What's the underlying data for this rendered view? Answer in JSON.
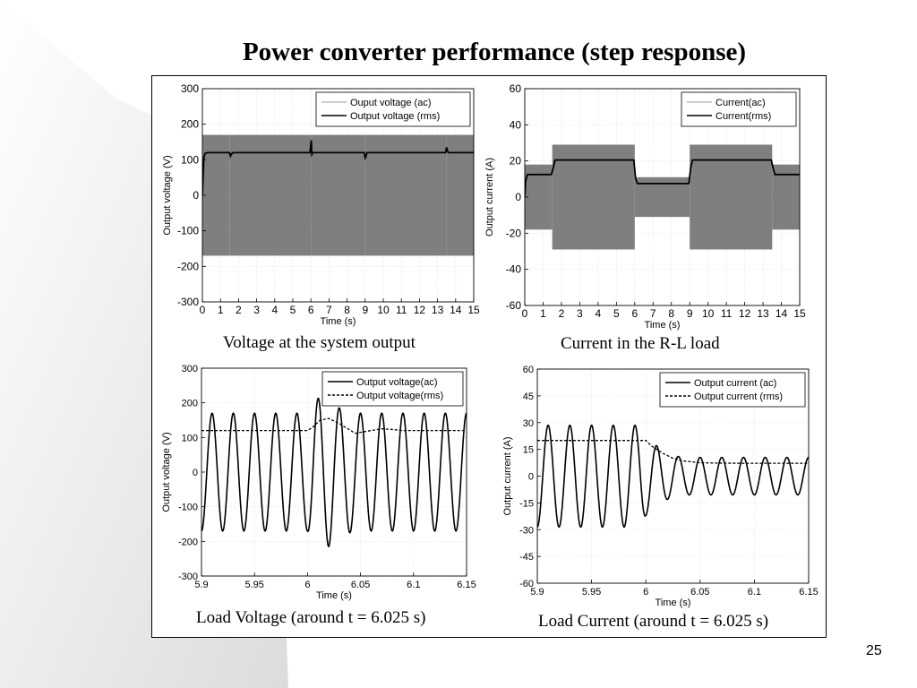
{
  "slide": {
    "title": "Power converter performance (step response)",
    "page_number": "25",
    "captions": [
      "Voltage at the system output",
      "Current in the R-L load",
      "Load Voltage (around t = 6.025 s)",
      "Load Current (around t = 6.025 s)"
    ]
  },
  "chart_data": [
    {
      "type": "line",
      "xlabel": "Time (s)",
      "ylabel": "Output voltage (V)",
      "xlim": [
        0,
        15
      ],
      "ylim": [
        -300,
        300
      ],
      "xticks": [
        0,
        1,
        2,
        3,
        4,
        5,
        6,
        7,
        8,
        9,
        10,
        11,
        12,
        13,
        14,
        15
      ],
      "yticks": [
        300,
        200,
        100,
        0,
        -100,
        -200,
        -300
      ],
      "legend_position": "top-right",
      "grid": true,
      "series": [
        {
          "name": "Ouput voltage (ac)",
          "style": "band",
          "color": "#7f7f7f",
          "segments": [
            {
              "x0": 0,
              "x1": 1.5,
              "amplitude": 170
            },
            {
              "x0": 1.5,
              "x1": 6,
              "amplitude": 170
            },
            {
              "x0": 6,
              "x1": 9,
              "amplitude": 170
            },
            {
              "x0": 9,
              "x1": 13.5,
              "amplitude": 170
            },
            {
              "x0": 13.5,
              "x1": 15,
              "amplitude": 170
            }
          ]
        },
        {
          "name": "Output voltage (rms)",
          "style": "solid",
          "color": "#000000",
          "x": [
            0,
            0.08,
            0.15,
            0.3,
            1.5,
            1.55,
            1.6,
            1.7,
            5.95,
            6.0,
            6.02,
            6.05,
            6.1,
            8.95,
            9.0,
            9.03,
            9.1,
            13.45,
            13.5,
            13.55,
            13.6,
            15
          ],
          "y": [
            0,
            105,
            118,
            120,
            120,
            110,
            116,
            120,
            120,
            145,
            155,
            115,
            120,
            120,
            105,
            108,
            120,
            120,
            135,
            125,
            120,
            120
          ]
        }
      ]
    },
    {
      "type": "line",
      "xlabel": "Time (s)",
      "ylabel": "Output current (A)",
      "xlim": [
        0,
        15
      ],
      "ylim": [
        -60,
        60
      ],
      "xticks": [
        0,
        1,
        2,
        3,
        4,
        5,
        6,
        7,
        8,
        9,
        10,
        11,
        12,
        13,
        14,
        15
      ],
      "yticks": [
        60,
        40,
        20,
        0,
        -20,
        -40,
        -60
      ],
      "legend_position": "top-right",
      "grid": true,
      "series": [
        {
          "name": "Current(ac)",
          "style": "band",
          "color": "#7f7f7f",
          "segments": [
            {
              "x0": 0,
              "x1": 1.5,
              "amplitude": 18
            },
            {
              "x0": 1.5,
              "x1": 6,
              "amplitude": 29
            },
            {
              "x0": 6,
              "x1": 9,
              "amplitude": 11
            },
            {
              "x0": 9,
              "x1": 13.5,
              "amplitude": 29
            },
            {
              "x0": 13.5,
              "x1": 15,
              "amplitude": 18
            }
          ]
        },
        {
          "name": "Current(rms)",
          "style": "solid",
          "color": "#000000",
          "x": [
            0,
            0.05,
            0.15,
            1.45,
            1.55,
            1.65,
            5.95,
            6.05,
            6.15,
            8.95,
            9.05,
            9.15,
            13.45,
            13.55,
            13.65,
            15
          ],
          "y": [
            0,
            9,
            12.5,
            12.5,
            16,
            20.5,
            20.5,
            10,
            7.5,
            7.5,
            16,
            20.5,
            20.5,
            16,
            12.5,
            12.5
          ]
        }
      ]
    },
    {
      "type": "line",
      "xlabel": "Time (s)",
      "ylabel": "Output voltage (V)",
      "xlim": [
        5.9,
        6.15
      ],
      "ylim": [
        -300,
        300
      ],
      "xticks": [
        5.9,
        5.95,
        6,
        6.05,
        6.1,
        6.15
      ],
      "xtick_labels": [
        "5.9",
        "5.95",
        "6",
        "6.05",
        "6.1",
        "6.15"
      ],
      "yticks": [
        300,
        200,
        100,
        0,
        -100,
        -200,
        -300
      ],
      "legend_position": "top-right",
      "grid": true,
      "signal": {
        "type": "sine",
        "frequency_hz": 50,
        "x_start": 5.9,
        "x_end": 6.15,
        "amplitude_x": [
          5.9,
          6.0,
          6.005,
          6.012,
          6.02,
          6.03,
          6.045,
          6.06,
          6.15
        ],
        "amplitude_y": [
          170,
          170,
          200,
          218,
          215,
          185,
          170,
          170,
          170
        ]
      },
      "series": [
        {
          "name": "Output voltage(ac)",
          "style": "solid",
          "color": "#000000"
        },
        {
          "name": "Output voltage(rms)",
          "style": "dashed",
          "color": "#000000",
          "x": [
            5.9,
            6.0,
            6.005,
            6.012,
            6.02,
            6.03,
            6.045,
            6.06,
            6.07,
            6.08,
            6.09,
            6.1,
            6.15
          ],
          "y": [
            120,
            120,
            130,
            150,
            155,
            140,
            112,
            120,
            125,
            123,
            120,
            120,
            120
          ]
        }
      ]
    },
    {
      "type": "line",
      "xlabel": "Time (s)",
      "ylabel": "Output current (A)",
      "xlim": [
        5.9,
        6.15
      ],
      "ylim": [
        -60,
        60
      ],
      "xticks": [
        5.9,
        5.95,
        6,
        6.05,
        6.1,
        6.15
      ],
      "xtick_labels": [
        "5.9",
        "5.95",
        "6",
        "6.05",
        "6.1",
        "6.15"
      ],
      "yticks": [
        60,
        45,
        30,
        15,
        0,
        -15,
        -30,
        -45,
        -60
      ],
      "legend_position": "top-right",
      "grid": true,
      "signal": {
        "type": "sine",
        "frequency_hz": 50,
        "x_start": 5.9,
        "x_end": 6.15,
        "amplitude_x": [
          5.9,
          5.995,
          6.0,
          6.01,
          6.02,
          6.03,
          6.04,
          6.15
        ],
        "amplitude_y": [
          28.5,
          28.5,
          22,
          17,
          13,
          11,
          10.5,
          10.5
        ],
        "offset_x": [
          5.9,
          6.0,
          6.15
        ],
        "offset_y": [
          0,
          0,
          0
        ]
      },
      "series": [
        {
          "name": "Output current (ac)",
          "style": "solid",
          "color": "#000000"
        },
        {
          "name": "Output current (rms)",
          "style": "dashed",
          "color": "#000000",
          "x": [
            5.9,
            6.0,
            6.005,
            6.015,
            6.025,
            6.035,
            6.05,
            6.07,
            6.09,
            6.15
          ],
          "y": [
            20,
            20,
            17,
            13,
            10,
            8.5,
            7.5,
            7.3,
            7.2,
            7.2
          ]
        }
      ]
    }
  ]
}
